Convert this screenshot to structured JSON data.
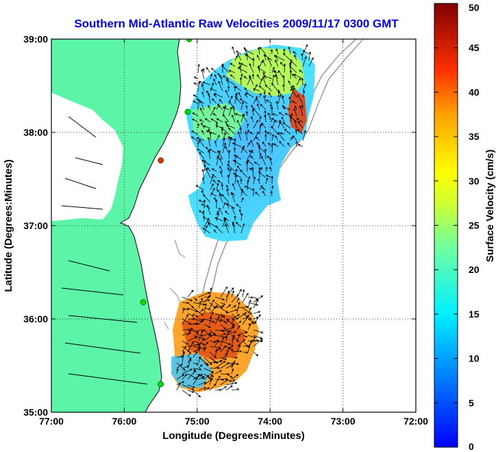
{
  "title": "Southern Mid-Atlantic Raw Velocities 2009/11/17 0300 GMT",
  "map": {
    "xlabel": "Longitude (Degrees:Minutes)",
    "ylabel": "Latitude (Degrees:Minutes)",
    "lon_range": [
      -77,
      -72
    ],
    "lat_range": [
      35,
      39
    ],
    "xticks": [
      {
        "value": -77,
        "label": "77:00"
      },
      {
        "value": -76,
        "label": "76:00"
      },
      {
        "value": -75,
        "label": "75:00"
      },
      {
        "value": -74,
        "label": "74:00"
      },
      {
        "value": -73,
        "label": "73:00"
      },
      {
        "value": -72,
        "label": "72:00"
      }
    ],
    "yticks": [
      {
        "value": 35,
        "label": "35:00"
      },
      {
        "value": 36,
        "label": "36:00"
      },
      {
        "value": 37,
        "label": "37:00"
      },
      {
        "value": 38,
        "label": "38:00"
      },
      {
        "value": 39,
        "label": "39:00"
      }
    ],
    "grid": true,
    "land_color": "#5cf5a8",
    "stations": [
      {
        "lon": -75.11,
        "lat": 39.0,
        "color": "#00e000"
      },
      {
        "lon": -75.13,
        "lat": 38.22,
        "color": "#00e000"
      },
      {
        "lon": -75.5,
        "lat": 37.7,
        "color": "#ff2000"
      },
      {
        "lon": -75.74,
        "lat": 36.18,
        "color": "#00e000"
      },
      {
        "lon": -75.5,
        "lat": 35.3,
        "color": "#00e000"
      }
    ]
  },
  "colorbar": {
    "label": "Surface Velocity (cm/s)",
    "min": 0,
    "max": 50,
    "ticks": [
      "0",
      "5",
      "10",
      "15",
      "20",
      "25",
      "30",
      "35",
      "40",
      "45",
      "50"
    ],
    "colormap": "jet"
  }
}
